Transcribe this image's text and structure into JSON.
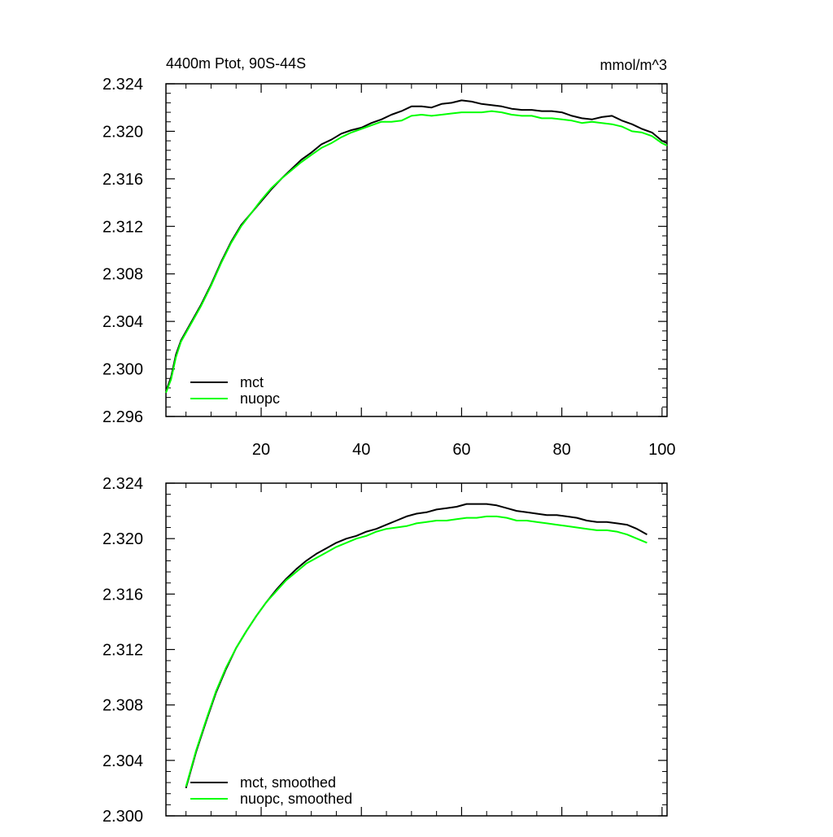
{
  "chart_data": [
    {
      "type": "line",
      "title": "4400m Ptot, 90S-44S",
      "units": "mmol/m^3",
      "xlim": [
        1,
        101
      ],
      "ylim": [
        2.296,
        2.324
      ],
      "xticks": [
        20,
        40,
        60,
        80,
        100
      ],
      "xtick_labels": [
        "20",
        "40",
        "60",
        "80",
        "100"
      ],
      "yticks": [
        2.296,
        2.3,
        2.304,
        2.308,
        2.312,
        2.316,
        2.32,
        2.324
      ],
      "ytick_labels": [
        "2.296",
        "2.300",
        "2.304",
        "2.308",
        "2.312",
        "2.316",
        "2.320",
        "2.324"
      ],
      "legend_position": "bottom-left",
      "series": [
        {
          "name": "mct",
          "color": "#000000",
          "x": [
            1,
            2,
            3,
            4,
            6,
            8,
            10,
            12,
            14,
            16,
            18,
            20,
            22,
            24,
            26,
            28,
            30,
            32,
            34,
            36,
            38,
            40,
            42,
            44,
            46,
            48,
            50,
            52,
            54,
            56,
            58,
            60,
            62,
            64,
            66,
            68,
            70,
            72,
            74,
            76,
            78,
            80,
            82,
            84,
            86,
            88,
            90,
            92,
            94,
            96,
            98,
            100,
            101
          ],
          "values": [
            2.2981,
            2.2993,
            2.3012,
            2.3024,
            2.3039,
            2.3054,
            2.3071,
            2.309,
            2.3107,
            2.3121,
            2.3131,
            2.3141,
            2.3151,
            2.316,
            2.3168,
            2.3176,
            2.3182,
            2.3189,
            2.3193,
            2.3198,
            2.3201,
            2.3203,
            2.3207,
            2.321,
            2.3214,
            2.3217,
            2.3221,
            2.3221,
            2.322,
            2.3223,
            2.3224,
            2.3226,
            2.3225,
            2.3223,
            2.3222,
            2.3221,
            2.3219,
            2.3218,
            2.3218,
            2.3217,
            2.3217,
            2.3216,
            2.3213,
            2.3211,
            2.321,
            2.3212,
            2.3213,
            2.3209,
            2.3206,
            2.3202,
            2.3199,
            2.3192,
            2.319
          ]
        },
        {
          "name": "nuopc",
          "color": "#00ff00",
          "x": [
            1,
            2,
            3,
            4,
            6,
            8,
            10,
            12,
            14,
            16,
            18,
            20,
            22,
            24,
            26,
            28,
            30,
            32,
            34,
            36,
            38,
            40,
            42,
            44,
            46,
            48,
            50,
            52,
            54,
            56,
            58,
            60,
            62,
            64,
            66,
            68,
            70,
            72,
            74,
            76,
            78,
            80,
            82,
            84,
            86,
            88,
            90,
            92,
            94,
            96,
            98,
            100,
            101
          ],
          "values": [
            2.298,
            2.2991,
            2.301,
            2.3023,
            2.3038,
            2.3053,
            2.307,
            2.3089,
            2.3106,
            2.312,
            2.3131,
            2.3142,
            2.3152,
            2.316,
            2.3167,
            2.3174,
            2.318,
            2.3186,
            2.319,
            2.3195,
            2.3199,
            2.3202,
            2.3205,
            2.3208,
            2.3208,
            2.3209,
            2.3213,
            2.3214,
            2.3213,
            2.3214,
            2.3215,
            2.3216,
            2.3216,
            2.3216,
            2.3217,
            2.3216,
            2.3214,
            2.3213,
            2.3213,
            2.3211,
            2.3211,
            2.321,
            2.3209,
            2.3207,
            2.3208,
            2.3207,
            2.3206,
            2.3204,
            2.32,
            2.3199,
            2.3196,
            2.319,
            2.3188
          ]
        }
      ]
    },
    {
      "type": "line",
      "xlim": [
        1,
        101
      ],
      "ylim": [
        2.3,
        2.324
      ],
      "xticks": [
        20,
        40,
        60,
        80,
        100
      ],
      "yticks": [
        2.3,
        2.304,
        2.308,
        2.312,
        2.316,
        2.32,
        2.324
      ],
      "ytick_labels": [
        "2.300",
        "2.304",
        "2.308",
        "2.312",
        "2.316",
        "2.320",
        "2.324"
      ],
      "legend_position": "bottom-left",
      "series": [
        {
          "name": "mct, smoothed",
          "color": "#000000",
          "x": [
            5,
            7,
            9,
            11,
            13,
            15,
            17,
            19,
            21,
            23,
            25,
            27,
            29,
            31,
            33,
            35,
            37,
            39,
            41,
            43,
            45,
            47,
            49,
            51,
            53,
            55,
            57,
            59,
            61,
            63,
            65,
            67,
            69,
            71,
            73,
            75,
            77,
            79,
            81,
            83,
            85,
            87,
            89,
            91,
            93,
            95,
            97
          ],
          "values": [
            2.302,
            2.3046,
            2.3068,
            2.3089,
            2.3106,
            2.3121,
            2.3133,
            2.3144,
            2.3154,
            2.3163,
            2.3171,
            2.3178,
            2.3184,
            2.3189,
            2.3193,
            2.3197,
            2.32,
            2.3202,
            2.3205,
            2.3207,
            2.321,
            2.3213,
            2.3216,
            2.3218,
            2.3219,
            2.3221,
            2.3222,
            2.3223,
            2.3225,
            2.3225,
            2.3225,
            2.3224,
            2.3222,
            2.322,
            2.3219,
            2.3218,
            2.3217,
            2.3217,
            2.3216,
            2.3215,
            2.3213,
            2.3212,
            2.3212,
            2.3211,
            2.321,
            2.3207,
            2.3203
          ]
        },
        {
          "name": "nuopc, smoothed",
          "color": "#00ff00",
          "x": [
            5,
            7,
            9,
            11,
            13,
            15,
            17,
            19,
            21,
            23,
            25,
            27,
            29,
            31,
            33,
            35,
            37,
            39,
            41,
            43,
            45,
            47,
            49,
            51,
            53,
            55,
            57,
            59,
            61,
            63,
            65,
            67,
            69,
            71,
            73,
            75,
            77,
            79,
            81,
            83,
            85,
            87,
            89,
            91,
            93,
            95,
            97
          ],
          "values": [
            2.3021,
            2.3047,
            2.3069,
            2.309,
            2.3107,
            2.3121,
            2.3133,
            2.3144,
            2.3154,
            2.3162,
            2.317,
            2.3176,
            2.3182,
            2.3186,
            2.319,
            2.3194,
            2.3197,
            2.32,
            2.3202,
            2.3205,
            2.3207,
            2.3208,
            2.3209,
            2.3211,
            2.3212,
            2.3213,
            2.3213,
            2.3214,
            2.3215,
            2.3215,
            2.3216,
            2.3216,
            2.3215,
            2.3213,
            2.3213,
            2.3212,
            2.3211,
            2.321,
            2.3209,
            2.3208,
            2.3207,
            2.3206,
            2.3206,
            2.3205,
            2.3203,
            2.32,
            2.3197
          ]
        }
      ]
    }
  ]
}
